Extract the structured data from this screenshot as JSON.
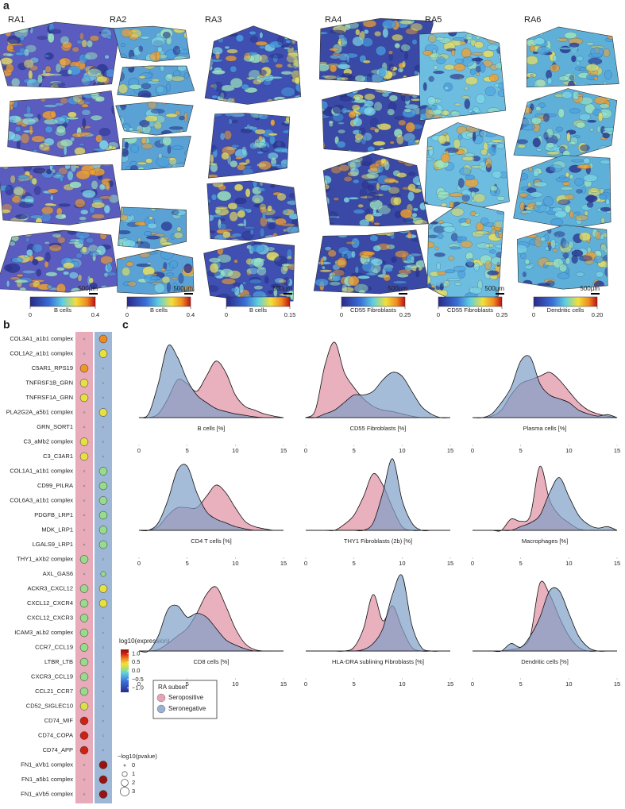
{
  "panel_labels": [
    "a",
    "b",
    "c"
  ],
  "panel_a": {
    "scale_bar": "500µm",
    "samples": [
      {
        "name": "RA1",
        "colorbar_label": "B cells",
        "ticks": [
          0,
          0.4
        ]
      },
      {
        "name": "RA2",
        "colorbar_label": "B cells",
        "ticks": [
          0,
          0.4
        ]
      },
      {
        "name": "RA3",
        "colorbar_label": "B cells",
        "ticks": [
          0,
          0.15
        ]
      },
      {
        "name": "RA4",
        "colorbar_label": "CD55 Fibroblasts",
        "ticks": [
          0,
          0.25
        ]
      },
      {
        "name": "RA5",
        "colorbar_label": "CD55 Fibroblasts",
        "ticks": [
          0,
          0.25
        ]
      },
      {
        "name": "RA6",
        "colorbar_label": "Dendritic cells",
        "ticks": [
          0,
          {
            "value": 0.2,
            "label": "0.20"
          }
        ]
      }
    ]
  },
  "legend": {
    "title": "RA subset",
    "entries": [
      {
        "name": "Seropositive",
        "color": "#e08fa3"
      },
      {
        "name": "Seronegative",
        "color": "#7f9fc8"
      }
    ]
  },
  "chart_data": [
    {
      "type": "dotplot",
      "categories": [
        "COL3A1_a1b1 complex",
        "COL1A2_a1b1 complex",
        "C5AR1_RPS19",
        "TNFRSF1B_GRN",
        "TNFRSF1A_GRN",
        "PLA2G2A_a5b1 complex",
        "GRN_SORT1",
        "C3_aMb2 complex",
        "C3_C3AR1",
        "COL1A1_a1b1 complex",
        "CD99_PILRA",
        "COL6A3_a1b1 complex",
        "PDGFB_LRP1",
        "MDK_LRP1",
        "LGALS9_LRP1",
        "THY1_aXb2 complex",
        "AXL_GAS6",
        "ACKR3_CXCL12",
        "CXCL12_CXCR4",
        "CXCL12_CXCR3",
        "ICAM3_aLb2 complex",
        "CCR7_CCL19",
        "LTBR_LTB",
        "CXCR3_CCL19",
        "CCL21_CCR7",
        "CD52_SIGLEC10",
        "CD74_MIF",
        "CD74_COPA",
        "CD74_APP",
        "FN1_aVb1 complex",
        "FN1_a5b1 complex",
        "FN1_aVb5 complex"
      ],
      "series": [
        {
          "values": [
            null,
            null,
            0.65,
            0.35,
            0.35,
            null,
            null,
            0.35,
            0.35,
            null,
            null,
            null,
            null,
            null,
            null,
            0.05,
            null,
            0.05,
            0.05,
            0.05,
            0.05,
            0.05,
            0.05,
            0.05,
            0.05,
            0.3,
            1.0,
            1.0,
            1.0,
            null,
            null,
            null
          ],
          "sizes": [
            0,
            0,
            2.5,
            2.5,
            2.5,
            0,
            0,
            2.5,
            2.5,
            0,
            0,
            0,
            0,
            0,
            0,
            2.5,
            0,
            2.5,
            2.5,
            2.5,
            2.5,
            2.5,
            2.5,
            2.5,
            2.5,
            2.5,
            2.5,
            2.5,
            2.5,
            0,
            0,
            0
          ]
        },
        {
          "values": [
            0.7,
            0.35,
            null,
            null,
            null,
            0.35,
            null,
            null,
            null,
            0.05,
            0.05,
            0.05,
            0.05,
            0.05,
            0.05,
            null,
            0.05,
            0.35,
            0.35,
            null,
            null,
            null,
            null,
            null,
            null,
            null,
            null,
            null,
            null,
            1.2,
            1.2,
            1.2
          ],
          "sizes": [
            2.5,
            2.5,
            0,
            0,
            0,
            2.5,
            0,
            0,
            0,
            2.5,
            2.5,
            2.5,
            2.5,
            2.5,
            2.5,
            0,
            1,
            2.5,
            2.5,
            0,
            0,
            0,
            0,
            0,
            0,
            0,
            0,
            0,
            0,
            2.5,
            2.5,
            2.5
          ]
        }
      ],
      "colorbar": {
        "title": "log10(expression)",
        "clim": [
          -1.25,
          1.25
        ],
        "ticks": [
          {
            "value": 1,
            "label": "1.0"
          },
          0.5,
          {
            "value": 0,
            "label": "0.0"
          },
          {
            "value": -0.5,
            "label": "−0.5"
          },
          {
            "value": -1,
            "label": "−1.0"
          }
        ]
      },
      "size_legend": {
        "title": "−log10(pvalue)",
        "ticks": [
          0,
          1,
          2,
          3
        ]
      }
    },
    {
      "type": "density",
      "xlabel": "B cells [%]",
      "x": [
        0,
        1,
        2,
        3,
        4,
        5,
        6,
        7,
        8,
        9,
        10,
        11,
        12,
        13,
        14,
        15
      ],
      "xlim": [
        0,
        15
      ],
      "xticks": [
        0,
        5,
        10,
        15
      ],
      "ylim": [
        0,
        1
      ],
      "series": [
        {
          "values": [
            0,
            0,
            0.05,
            0.25,
            0.5,
            0.45,
            0.35,
            0.55,
            0.75,
            0.6,
            0.3,
            0.15,
            0.1,
            0.05,
            0.02,
            0
          ]
        },
        {
          "values": [
            0,
            0.05,
            0.45,
            0.95,
            0.8,
            0.5,
            0.3,
            0.2,
            0.12,
            0.08,
            0.05,
            0.03,
            0.01,
            0,
            0,
            0
          ]
        }
      ]
    },
    {
      "type": "density",
      "xlabel": "CD55 Fibroblasts [%]",
      "x": [
        0,
        1,
        2,
        3,
        4,
        5,
        6,
        7,
        8,
        9,
        10,
        11,
        12,
        13,
        14,
        15
      ],
      "xlim": [
        0,
        15
      ],
      "xticks": [
        0,
        5,
        10,
        15
      ],
      "ylim": [
        0,
        1
      ],
      "series": [
        {
          "values": [
            0,
            0.1,
            0.7,
            1.0,
            0.6,
            0.4,
            0.25,
            0.15,
            0.1,
            0.08,
            0.05,
            0.02,
            0,
            0,
            0,
            0
          ]
        },
        {
          "values": [
            0,
            0,
            0.05,
            0.1,
            0.2,
            0.3,
            0.3,
            0.35,
            0.5,
            0.6,
            0.55,
            0.35,
            0.15,
            0.05,
            0,
            0
          ]
        }
      ]
    },
    {
      "type": "density",
      "xlabel": "Plasma cells [%]",
      "x": [
        0,
        1,
        2,
        3,
        4,
        5,
        6,
        7,
        8,
        9,
        10,
        11,
        12,
        13,
        14,
        15
      ],
      "xlim": [
        0,
        15
      ],
      "xticks": [
        0,
        5,
        10,
        15
      ],
      "ylim": [
        0,
        1
      ],
      "series": [
        {
          "values": [
            0,
            0,
            0.02,
            0.1,
            0.3,
            0.45,
            0.5,
            0.55,
            0.6,
            0.5,
            0.35,
            0.2,
            0.1,
            0.05,
            0.02,
            0
          ]
        },
        {
          "values": [
            0,
            0,
            0.05,
            0.2,
            0.4,
            0.75,
            0.8,
            0.45,
            0.3,
            0.25,
            0.2,
            0.1,
            0.05,
            0.02,
            0.04,
            0
          ]
        }
      ]
    },
    {
      "type": "density",
      "xlabel": "CD4 T cells [%]",
      "x": [
        0,
        1,
        2,
        3,
        4,
        5,
        6,
        7,
        8,
        9,
        10,
        11,
        12,
        13,
        14,
        15
      ],
      "xlim": [
        0,
        15
      ],
      "xticks": [
        0,
        5,
        10,
        15
      ],
      "ylim": [
        0,
        1
      ],
      "series": [
        {
          "values": [
            0,
            0,
            0.05,
            0.2,
            0.3,
            0.3,
            0.3,
            0.45,
            0.6,
            0.5,
            0.3,
            0.12,
            0.05,
            0.02,
            0,
            0
          ]
        },
        {
          "values": [
            0,
            0,
            0.1,
            0.4,
            0.8,
            0.85,
            0.5,
            0.25,
            0.15,
            0.1,
            0.05,
            0.02,
            0,
            0,
            0,
            0
          ]
        }
      ]
    },
    {
      "type": "density",
      "xlabel": "THY1 Fibroblasts (2b) [%]",
      "x": [
        0,
        1,
        2,
        3,
        4,
        5,
        6,
        7,
        8,
        9,
        10,
        11,
        12,
        13,
        14,
        15
      ],
      "xlim": [
        0,
        15
      ],
      "xticks": [
        0,
        5,
        10,
        15
      ],
      "ylim": [
        0,
        1
      ],
      "series": [
        {
          "values": [
            0,
            0,
            0,
            0,
            0.08,
            0.2,
            0.45,
            0.75,
            0.6,
            0.3,
            0.05,
            0,
            0,
            0,
            0,
            0
          ]
        },
        {
          "values": [
            0,
            0,
            0,
            0,
            0,
            0,
            0,
            0.1,
            0.5,
            0.95,
            0.4,
            0.1,
            0,
            0,
            0,
            0
          ]
        }
      ]
    },
    {
      "type": "density",
      "xlabel": "Macrophages [%]",
      "x": [
        0,
        1,
        2,
        3,
        4,
        5,
        6,
        7,
        8,
        9,
        10,
        11,
        12,
        13,
        14,
        15
      ],
      "xlim": [
        0,
        15
      ],
      "xticks": [
        0,
        5,
        10,
        15
      ],
      "ylim": [
        0,
        1
      ],
      "series": [
        {
          "values": [
            0,
            0,
            0,
            0,
            0.15,
            0.12,
            0.2,
            0.85,
            0.4,
            0.2,
            0.1,
            0.02,
            0,
            0,
            0,
            0
          ]
        },
        {
          "values": [
            0,
            0,
            0,
            0,
            0,
            0.05,
            0.1,
            0.2,
            0.5,
            0.7,
            0.45,
            0.2,
            0.08,
            0.03,
            0.05,
            0
          ]
        }
      ]
    },
    {
      "type": "density",
      "xlabel": "CD8 cells [%]",
      "x": [
        0,
        1,
        2,
        3,
        4,
        5,
        6,
        7,
        8,
        9,
        10,
        11,
        12,
        13,
        14,
        15
      ],
      "xlim": [
        0,
        15
      ],
      "xticks": [
        0,
        5,
        10,
        15
      ],
      "ylim": [
        0,
        1
      ],
      "series": [
        {
          "values": [
            0,
            0,
            0.02,
            0.1,
            0.2,
            0.3,
            0.5,
            0.75,
            0.85,
            0.6,
            0.3,
            0.1,
            0.02,
            0,
            0,
            0
          ]
        },
        {
          "values": [
            0,
            0,
            0.2,
            0.55,
            0.6,
            0.45,
            0.5,
            0.45,
            0.3,
            0.15,
            0.08,
            0.03,
            0,
            0,
            0,
            0
          ]
        }
      ]
    },
    {
      "type": "density",
      "xlabel": "HLA-DRA sublining Fibroblasts [%]",
      "x": [
        0,
        1,
        2,
        3,
        4,
        5,
        6,
        7,
        8,
        9,
        10,
        11,
        12,
        13,
        14,
        15
      ],
      "xlim": [
        0,
        15
      ],
      "xticks": [
        0,
        5,
        10,
        15
      ],
      "ylim": [
        0,
        1
      ],
      "series": [
        {
          "values": [
            0,
            0,
            0,
            0,
            0,
            0.05,
            0.3,
            0.75,
            0.4,
            0.6,
            0.3,
            0.05,
            0,
            0,
            0,
            0
          ]
        },
        {
          "values": [
            0,
            0,
            0,
            0,
            0,
            0,
            0.02,
            0.1,
            0.3,
            0.75,
            1.0,
            0.35,
            0.05,
            0,
            0,
            0
          ]
        }
      ]
    },
    {
      "type": "density",
      "xlabel": "Dendritic cells [%]",
      "x": [
        0,
        1,
        2,
        3,
        4,
        5,
        6,
        7,
        8,
        9,
        10,
        11,
        12,
        13,
        14,
        15
      ],
      "xlim": [
        0,
        15
      ],
      "xticks": [
        0,
        5,
        10,
        15
      ],
      "ylim": [
        0,
        1
      ],
      "series": [
        {
          "values": [
            0,
            0,
            0,
            0,
            0.02,
            0.05,
            0.2,
            0.9,
            0.75,
            0.45,
            0.2,
            0.05,
            0,
            0,
            0,
            0
          ]
        },
        {
          "values": [
            0,
            0,
            0,
            0,
            0.1,
            0.05,
            0.2,
            0.45,
            0.8,
            0.8,
            0.5,
            0.2,
            0.05,
            0,
            0,
            0
          ]
        }
      ]
    }
  ]
}
